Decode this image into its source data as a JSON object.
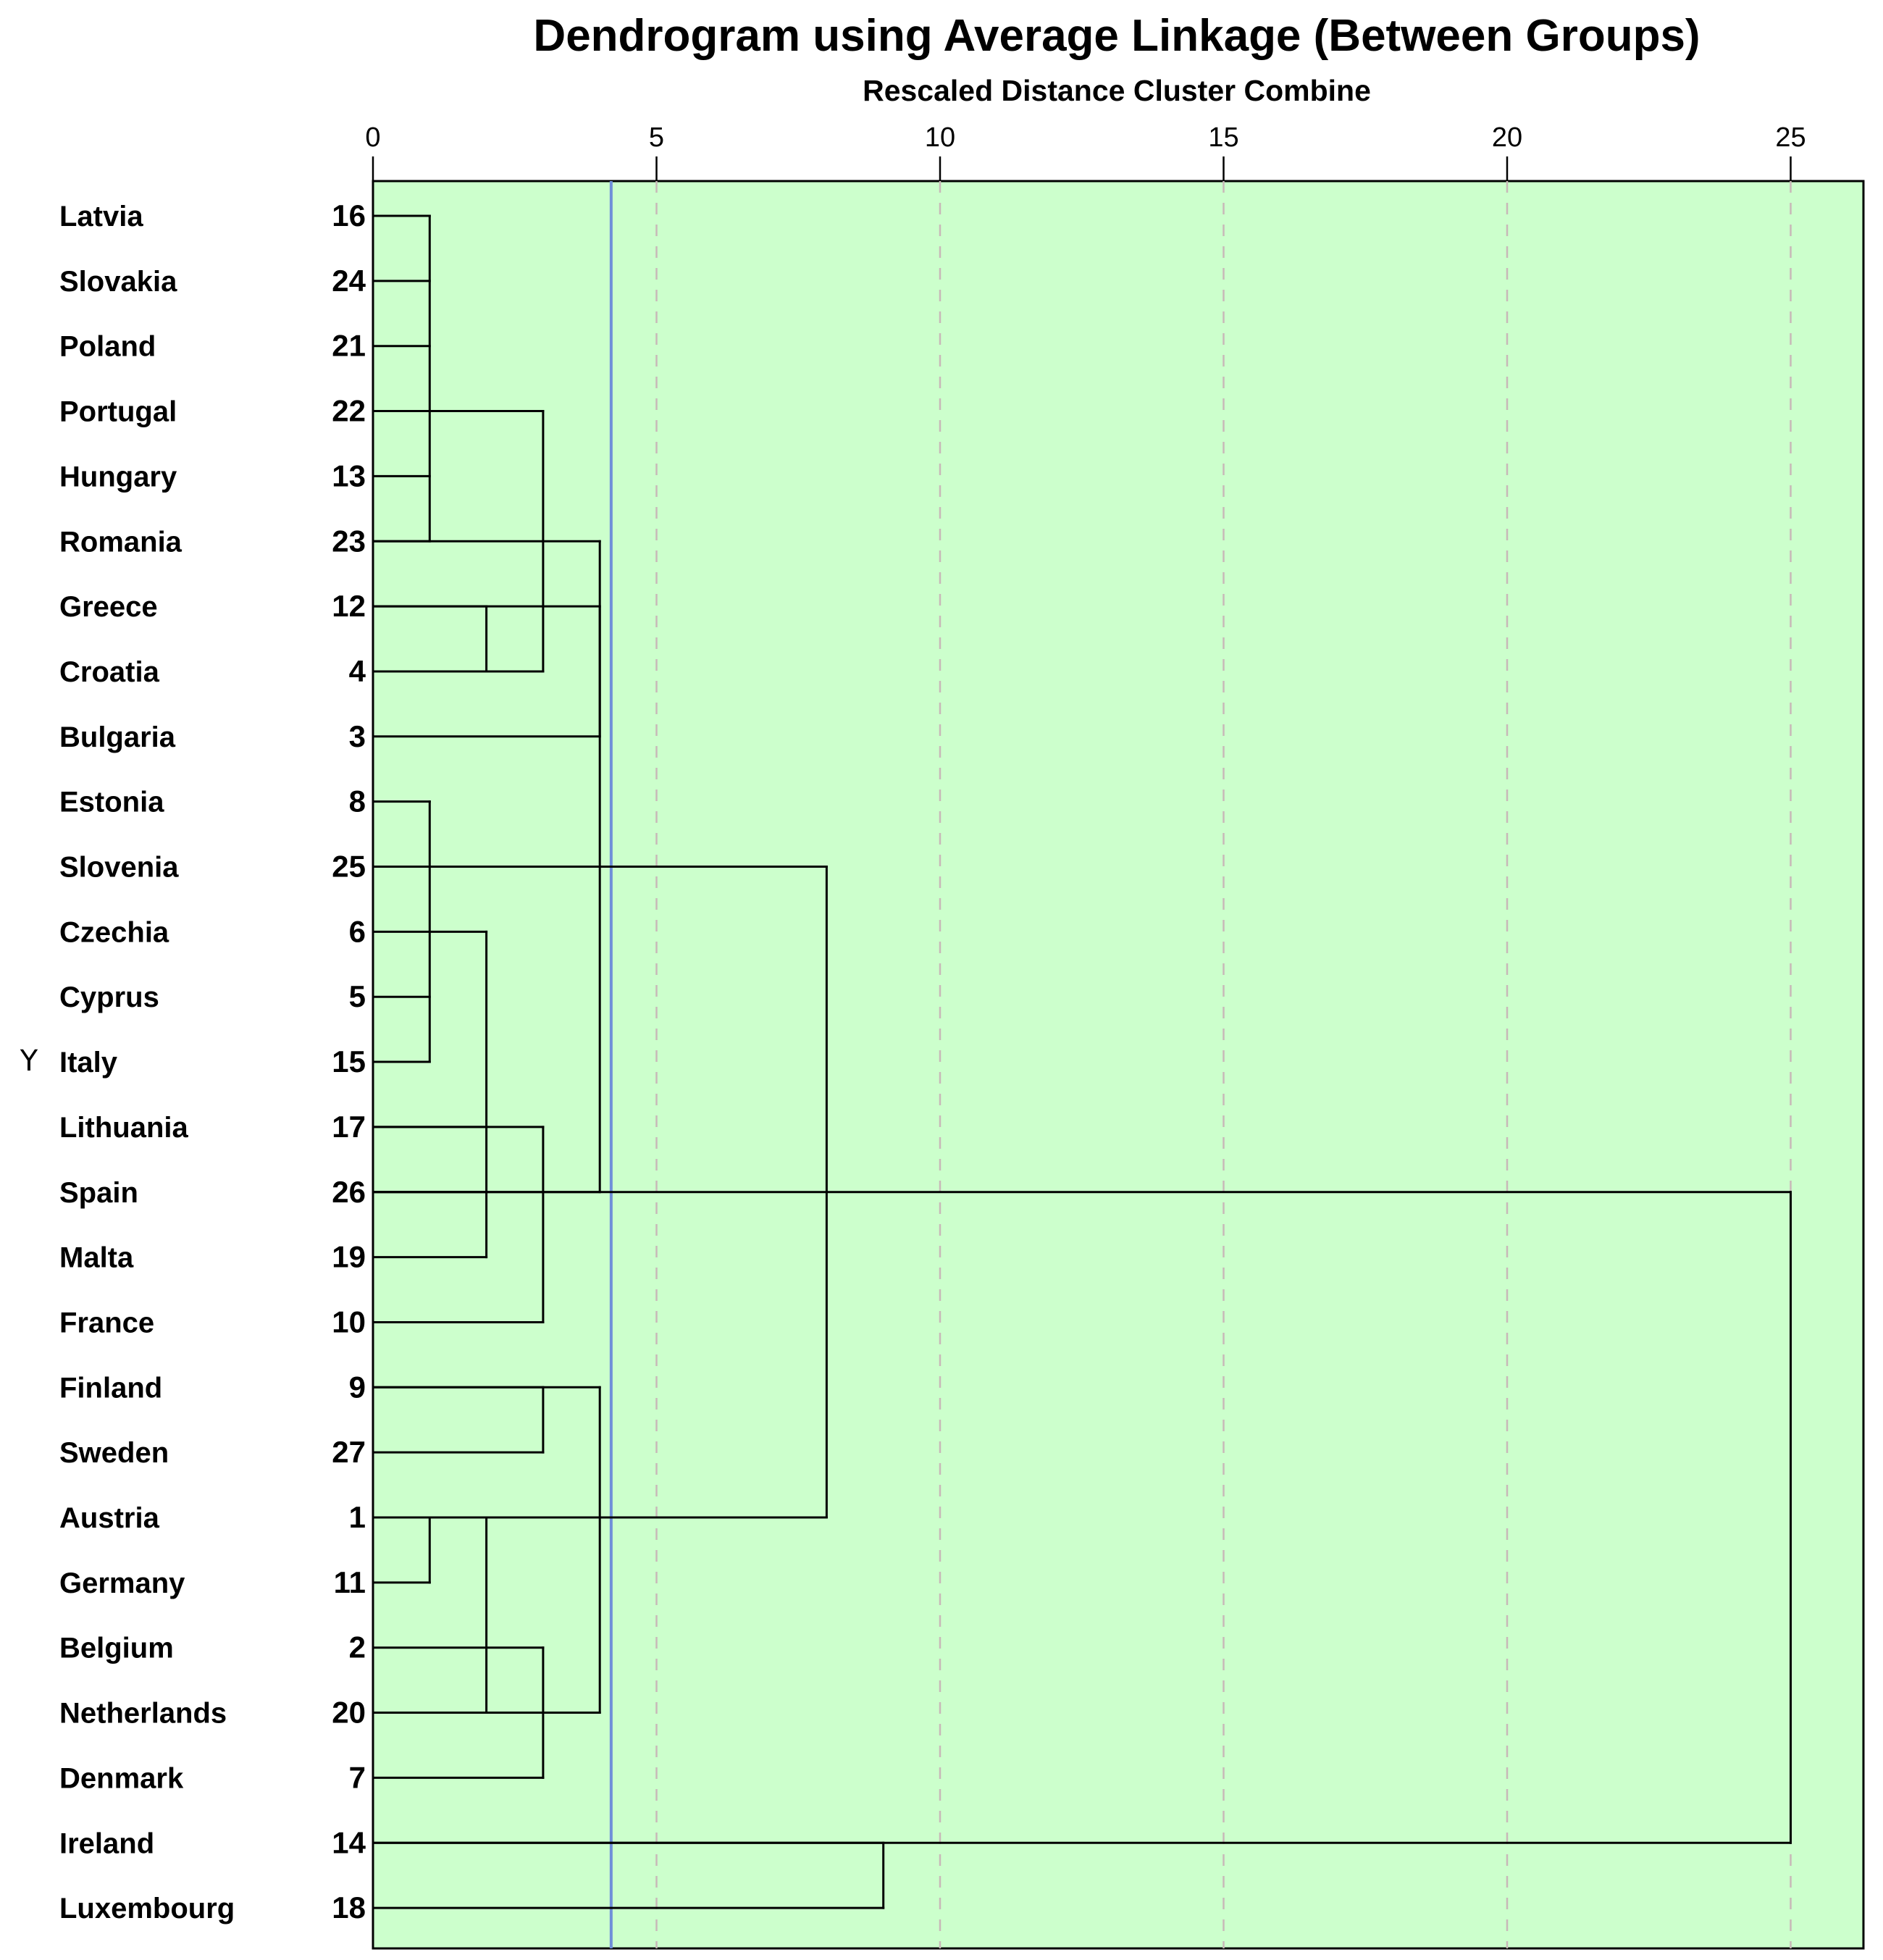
{
  "chart_data": {
    "type": "dendrogram",
    "title": "Dendrogram using Average Linkage (Between Groups)",
    "xlabel": "Rescaled Distance Cluster Combine",
    "ylabel": "Y",
    "xlim": [
      0,
      26.3
    ],
    "x_ticks": [
      0,
      5,
      10,
      15,
      20,
      25
    ],
    "gridlines": "vertical dashed",
    "cut_line": {
      "distance": 4.2,
      "color": "#6f8fd9"
    },
    "background": "#ccffcc",
    "leaves": [
      {
        "name": "Latvia",
        "id": 16
      },
      {
        "name": "Slovakia",
        "id": 24
      },
      {
        "name": "Poland",
        "id": 21
      },
      {
        "name": "Portugal",
        "id": 22
      },
      {
        "name": "Hungary",
        "id": 13
      },
      {
        "name": "Romania",
        "id": 23
      },
      {
        "name": "Greece",
        "id": 12
      },
      {
        "name": "Croatia",
        "id": 4
      },
      {
        "name": "Bulgaria",
        "id": 3
      },
      {
        "name": "Estonia",
        "id": 8
      },
      {
        "name": "Slovenia",
        "id": 25
      },
      {
        "name": "Czechia",
        "id": 6
      },
      {
        "name": "Cyprus",
        "id": 5
      },
      {
        "name": "Italy",
        "id": 15
      },
      {
        "name": "Lithuania",
        "id": 17
      },
      {
        "name": "Spain",
        "id": 26
      },
      {
        "name": "Malta",
        "id": 19
      },
      {
        "name": "France",
        "id": 10
      },
      {
        "name": "Finland",
        "id": 9
      },
      {
        "name": "Sweden",
        "id": 27
      },
      {
        "name": "Austria",
        "id": 1
      },
      {
        "name": "Germany",
        "id": 11
      },
      {
        "name": "Belgium",
        "id": 2
      },
      {
        "name": "Netherlands",
        "id": 20
      },
      {
        "name": "Denmark",
        "id": 7
      },
      {
        "name": "Ireland",
        "id": 14
      },
      {
        "name": "Luxembourg",
        "id": 18
      }
    ],
    "merges": [
      {
        "children": [
          0,
          1,
          2,
          4,
          5
        ],
        "distance": 1.0,
        "y": 3
      },
      {
        "children": [
          6,
          7
        ],
        "distance": 2.0,
        "y": 7
      },
      {
        "children": [
          3,
          7
        ],
        "distance": 3.0,
        "y": 5
      },
      {
        "children": [
          5,
          8
        ],
        "distance": 4.0,
        "y": 6
      },
      {
        "children": [
          9,
          10,
          12,
          13
        ],
        "distance": 1.0,
        "y": 11
      },
      {
        "children": [
          11,
          14,
          15,
          16
        ],
        "distance": 2.0,
        "y": 15
      },
      {
        "children": [
          14,
          17
        ],
        "distance": 3.0,
        "y": 15
      },
      {
        "children": [
          6,
          15
        ],
        "distance": 4.0,
        "y": 10
      },
      {
        "children": [
          18,
          19
        ],
        "distance": 3.0,
        "y": 18
      },
      {
        "children": [
          20,
          21
        ],
        "distance": 1.0,
        "y": 21
      },
      {
        "children": [
          20,
          23
        ],
        "distance": 2.0,
        "y": 22
      },
      {
        "children": [
          22,
          24
        ],
        "distance": 3.0,
        "y": 23
      },
      {
        "children": [
          18,
          23
        ],
        "distance": 4.0,
        "y": 20
      },
      {
        "children": [
          10,
          20
        ],
        "distance": 8.0,
        "y": 15
      },
      {
        "children": [
          25,
          26
        ],
        "distance": 9.0,
        "y": 25
      },
      {
        "children": [
          15,
          25
        ],
        "distance": 25.0,
        "y": 15
      }
    ]
  }
}
